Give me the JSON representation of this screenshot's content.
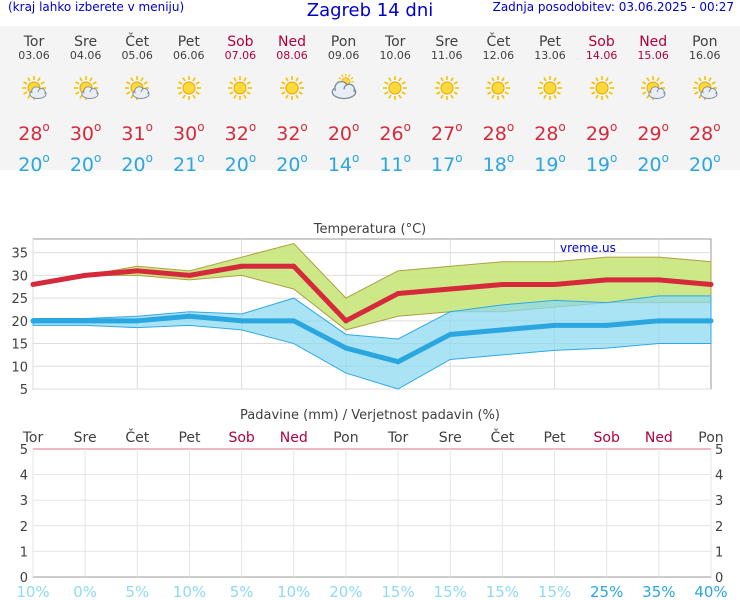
{
  "header": {
    "menu_hint": "(kraj lahko izberete v meniju)",
    "title": "Zagreb 14 dni",
    "updated": "Zadnja posodobitev: 03.06.2025 - 00:27"
  },
  "days": [
    {
      "name": "Tor",
      "date": "03.06",
      "weekend": false,
      "icon": "sun-cloud-icon",
      "max": "28",
      "min": "20"
    },
    {
      "name": "Sre",
      "date": "04.06",
      "weekend": false,
      "icon": "sun-cloud-icon",
      "max": "30",
      "min": "20"
    },
    {
      "name": "Čet",
      "date": "05.06",
      "weekend": false,
      "icon": "sun-cloud-icon",
      "max": "31",
      "min": "20"
    },
    {
      "name": "Pet",
      "date": "06.06",
      "weekend": false,
      "icon": "sun-icon",
      "max": "30",
      "min": "21"
    },
    {
      "name": "Sob",
      "date": "07.06",
      "weekend": true,
      "icon": "sun-icon",
      "max": "32",
      "min": "20"
    },
    {
      "name": "Ned",
      "date": "08.06",
      "weekend": true,
      "icon": "sun-icon",
      "max": "32",
      "min": "20"
    },
    {
      "name": "Pon",
      "date": "09.06",
      "weekend": false,
      "icon": "cloud-sun-icon",
      "max": "20",
      "min": "14"
    },
    {
      "name": "Tor",
      "date": "10.06",
      "weekend": false,
      "icon": "sun-icon",
      "max": "26",
      "min": "11"
    },
    {
      "name": "Sre",
      "date": "11.06",
      "weekend": false,
      "icon": "sun-icon",
      "max": "27",
      "min": "17"
    },
    {
      "name": "Čet",
      "date": "12.06",
      "weekend": false,
      "icon": "sun-icon",
      "max": "28",
      "min": "18"
    },
    {
      "name": "Pet",
      "date": "13.06",
      "weekend": false,
      "icon": "sun-icon",
      "max": "28",
      "min": "19"
    },
    {
      "name": "Sob",
      "date": "14.06",
      "weekend": true,
      "icon": "sun-icon",
      "max": "29",
      "min": "19"
    },
    {
      "name": "Ned",
      "date": "15.06",
      "weekend": true,
      "icon": "sun-cloud-icon",
      "max": "29",
      "min": "20"
    },
    {
      "name": "Pon",
      "date": "16.06",
      "weekend": false,
      "icon": "sun-cloud-icon",
      "max": "28",
      "min": "20"
    }
  ],
  "colors": {
    "max": "#d42a3c",
    "min": "#2aa6e0",
    "weekend": "#b00040",
    "band_max": "#c8e67a",
    "band_min": "#8edaf0",
    "band_overlap": "#7cce8a"
  },
  "chart_data": [
    {
      "type": "line",
      "title": "Temperatura (°C)",
      "watermark": "vreme.us",
      "categories": [
        "03.06",
        "04.06",
        "05.06",
        "06.06",
        "07.06",
        "08.06",
        "09.06",
        "10.06",
        "11.06",
        "12.06",
        "13.06",
        "14.06",
        "15.06",
        "16.06"
      ],
      "ylim": [
        5,
        38
      ],
      "yticks": [
        5,
        10,
        15,
        20,
        25,
        30,
        35
      ],
      "grid": true,
      "series": [
        {
          "values": [
            28,
            30,
            31,
            30,
            32,
            32,
            20,
            26,
            27,
            28,
            28,
            29,
            29,
            28
          ],
          "color": "#d42a3c"
        },
        {
          "values": [
            20,
            20,
            20,
            21,
            20,
            20,
            14,
            11,
            17,
            18,
            19,
            19,
            20,
            20
          ],
          "color": "#2aa6e0"
        }
      ],
      "bands": [
        {
          "lower": [
            28,
            30,
            30,
            29,
            30,
            27,
            18,
            21,
            22,
            22,
            23,
            24,
            24,
            24
          ],
          "upper": [
            28,
            30,
            32,
            31,
            34,
            37,
            25,
            31,
            32,
            33,
            33,
            34,
            34,
            33
          ],
          "color": "#c8e67a"
        },
        {
          "lower": [
            19,
            19,
            18.5,
            19,
            18,
            15,
            8.5,
            5,
            11.5,
            12.5,
            13.5,
            14,
            15,
            15
          ],
          "upper": [
            20.5,
            20.5,
            21,
            22,
            21.5,
            25,
            17,
            16,
            22,
            23.5,
            24.5,
            24,
            25.5,
            25.5
          ],
          "color": "#8edaf0"
        }
      ]
    },
    {
      "type": "bar",
      "title": "Padavine (mm) / Verjetnost padavin (%)",
      "categories": [
        "Tor",
        "Sre",
        "Čet",
        "Pet",
        "Sob",
        "Ned",
        "Pon",
        "Tor",
        "Sre",
        "Čet",
        "Pet",
        "Sob",
        "Ned",
        "Pon"
      ],
      "weekend": [
        false,
        false,
        false,
        false,
        true,
        true,
        false,
        false,
        false,
        false,
        false,
        true,
        true,
        false
      ],
      "ylim": [
        0,
        5
      ],
      "yticks": [
        0,
        1,
        2,
        3,
        4,
        5
      ],
      "series": [
        {
          "values": [
            0,
            0,
            0,
            0,
            0,
            0,
            0,
            0,
            0,
            0,
            0,
            0,
            0,
            0
          ]
        }
      ],
      "probability": [
        "10%",
        "0%",
        "5%",
        "10%",
        "5%",
        "10%",
        "20%",
        "15%",
        "15%",
        "15%",
        "15%",
        "25%",
        "35%",
        "40%"
      ],
      "probability_colors": [
        "#8edaf0",
        "#8edaf0",
        "#8edaf0",
        "#8edaf0",
        "#8edaf0",
        "#8edaf0",
        "#8edaf0",
        "#8edaf0",
        "#8edaf0",
        "#8edaf0",
        "#8edaf0",
        "#2aa6e0",
        "#2aa6e0",
        "#2aa6e0"
      ]
    }
  ]
}
